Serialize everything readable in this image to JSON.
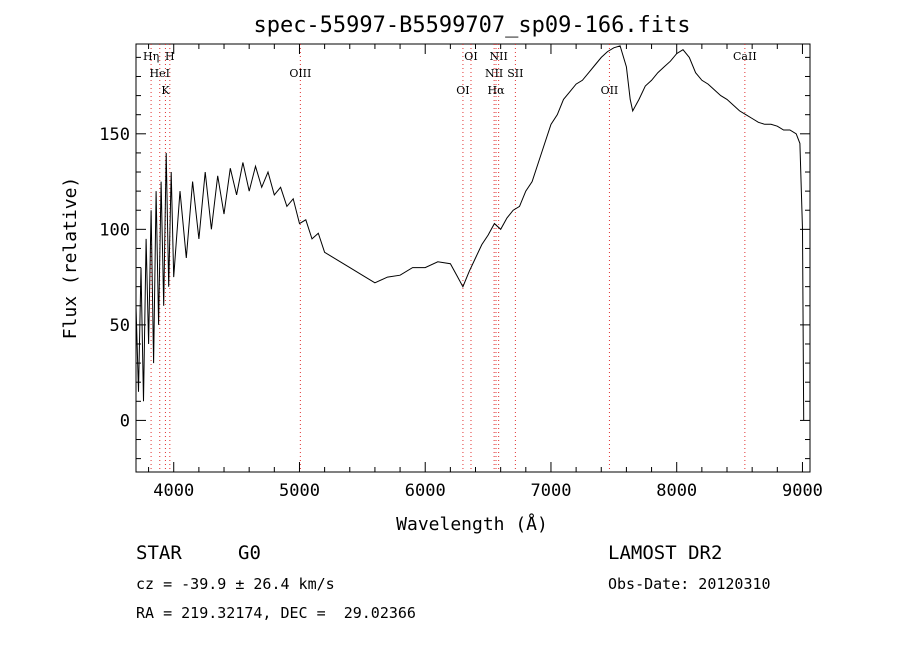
{
  "chart_data": {
    "type": "line",
    "title": "spec-55997-B5599707_sp09-166.fits",
    "xlabel": "Wavelength (Å)",
    "ylabel": "Flux (relative)",
    "xlim": [
      3700,
      9060
    ],
    "ylim": [
      -27,
      197
    ],
    "xticks": [
      4000,
      5000,
      6000,
      7000,
      8000,
      9000
    ],
    "yticks": [
      0,
      50,
      100,
      150
    ],
    "grid": false,
    "series": [
      {
        "color": "#000000",
        "points": [
          [
            3700,
            60
          ],
          [
            3720,
            15
          ],
          [
            3740,
            80
          ],
          [
            3760,
            10
          ],
          [
            3780,
            95
          ],
          [
            3800,
            40
          ],
          [
            3820,
            110
          ],
          [
            3840,
            30
          ],
          [
            3860,
            120
          ],
          [
            3880,
            50
          ],
          [
            3900,
            125
          ],
          [
            3920,
            60
          ],
          [
            3940,
            140
          ],
          [
            3960,
            70
          ],
          [
            3980,
            130
          ],
          [
            4000,
            75
          ],
          [
            4050,
            120
          ],
          [
            4100,
            85
          ],
          [
            4150,
            125
          ],
          [
            4200,
            95
          ],
          [
            4250,
            130
          ],
          [
            4300,
            100
          ],
          [
            4350,
            128
          ],
          [
            4400,
            108
          ],
          [
            4450,
            132
          ],
          [
            4500,
            118
          ],
          [
            4550,
            135
          ],
          [
            4600,
            120
          ],
          [
            4650,
            133
          ],
          [
            4700,
            122
          ],
          [
            4750,
            130
          ],
          [
            4800,
            118
          ],
          [
            4850,
            122
          ],
          [
            4900,
            112
          ],
          [
            4950,
            116
          ],
          [
            5000,
            103
          ],
          [
            5050,
            105
          ],
          [
            5100,
            95
          ],
          [
            5150,
            98
          ],
          [
            5200,
            88
          ],
          [
            5300,
            84
          ],
          [
            5400,
            80
          ],
          [
            5500,
            76
          ],
          [
            5600,
            72
          ],
          [
            5700,
            75
          ],
          [
            5800,
            76
          ],
          [
            5900,
            80
          ],
          [
            6000,
            80
          ],
          [
            6100,
            83
          ],
          [
            6200,
            82
          ],
          [
            6250,
            76
          ],
          [
            6300,
            70
          ],
          [
            6350,
            78
          ],
          [
            6400,
            85
          ],
          [
            6450,
            92
          ],
          [
            6500,
            97
          ],
          [
            6550,
            103
          ],
          [
            6600,
            100
          ],
          [
            6650,
            106
          ],
          [
            6700,
            110
          ],
          [
            6750,
            112
          ],
          [
            6800,
            120
          ],
          [
            6850,
            125
          ],
          [
            6900,
            135
          ],
          [
            6950,
            145
          ],
          [
            7000,
            155
          ],
          [
            7050,
            160
          ],
          [
            7100,
            168
          ],
          [
            7150,
            172
          ],
          [
            7200,
            176
          ],
          [
            7250,
            178
          ],
          [
            7300,
            182
          ],
          [
            7350,
            186
          ],
          [
            7400,
            190
          ],
          [
            7450,
            193
          ],
          [
            7500,
            195
          ],
          [
            7550,
            196
          ],
          [
            7600,
            185
          ],
          [
            7630,
            168
          ],
          [
            7650,
            162
          ],
          [
            7700,
            168
          ],
          [
            7750,
            175
          ],
          [
            7800,
            178
          ],
          [
            7850,
            182
          ],
          [
            7900,
            185
          ],
          [
            7950,
            188
          ],
          [
            8000,
            192
          ],
          [
            8050,
            194
          ],
          [
            8100,
            190
          ],
          [
            8150,
            182
          ],
          [
            8200,
            178
          ],
          [
            8250,
            176
          ],
          [
            8300,
            173
          ],
          [
            8350,
            170
          ],
          [
            8400,
            168
          ],
          [
            8450,
            165
          ],
          [
            8500,
            162
          ],
          [
            8550,
            160
          ],
          [
            8600,
            158
          ],
          [
            8650,
            156
          ],
          [
            8700,
            155
          ],
          [
            8750,
            155
          ],
          [
            8800,
            154
          ],
          [
            8850,
            152
          ],
          [
            8900,
            152
          ],
          [
            8950,
            150
          ],
          [
            8980,
            145
          ],
          [
            9000,
            100
          ],
          [
            9010,
            0
          ]
        ]
      }
    ],
    "lines": [
      {
        "wavelength": 3820,
        "labels": [
          "Hη"
        ]
      },
      {
        "wavelength": 3889,
        "labels": [
          "HeI"
        ]
      },
      {
        "wavelength": 3934,
        "labels": [
          "K"
        ]
      },
      {
        "wavelength": 3969,
        "labels": [
          "H"
        ]
      },
      {
        "wavelength": 5007,
        "labels": [
          "OIII"
        ]
      },
      {
        "wavelength": 6300,
        "labels": [
          "OI"
        ]
      },
      {
        "wavelength": 6364,
        "labels": [
          "OI"
        ]
      },
      {
        "wavelength": 6548,
        "labels": [
          "NII"
        ]
      },
      {
        "wavelength": 6563,
        "labels": [
          "Hα"
        ]
      },
      {
        "wavelength": 6584,
        "labels": [
          "NII"
        ]
      },
      {
        "wavelength": 6717,
        "labels": [
          "SII"
        ]
      },
      {
        "wavelength": 7465,
        "labels": [
          "OII"
        ]
      },
      {
        "wavelength": 8542,
        "labels": [
          "CaII"
        ]
      }
    ]
  },
  "info": {
    "object_class": "STAR",
    "subclass": "G0",
    "survey": "LAMOST DR2",
    "cz": "cz = -39.9 ± 26.4 km/s",
    "obs_date": "Obs-Date: 20120310",
    "coords": "RA = 219.32174, DEC =  29.02366"
  }
}
